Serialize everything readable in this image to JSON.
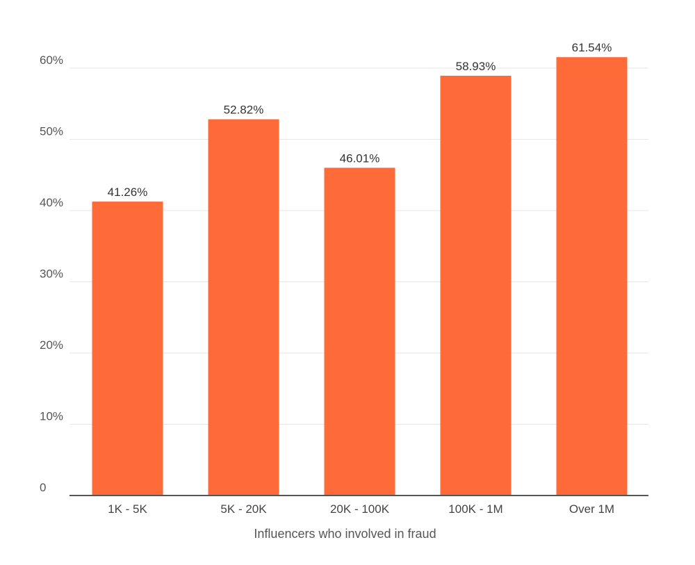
{
  "chart_data": {
    "type": "bar",
    "categories": [
      "1K - 5K",
      "5K - 20K",
      "20K - 100K",
      "100K - 1M",
      "Over 1M"
    ],
    "values": [
      41.26,
      52.82,
      46.01,
      58.93,
      61.54
    ],
    "value_labels": [
      "41.26%",
      "52.82%",
      "46.01%",
      "58.93%",
      "61.54%"
    ],
    "title": "",
    "xlabel": "Influencers who involved in fraud",
    "ylabel": "",
    "ylim": [
      0,
      60
    ],
    "yticks": [
      0,
      10,
      20,
      30,
      40,
      50,
      60
    ],
    "ytick_labels": [
      "0",
      "10%",
      "20%",
      "30%",
      "40%",
      "50%",
      "60%"
    ],
    "grid": true,
    "legend": "none",
    "bar_color": "#ff6a39"
  }
}
